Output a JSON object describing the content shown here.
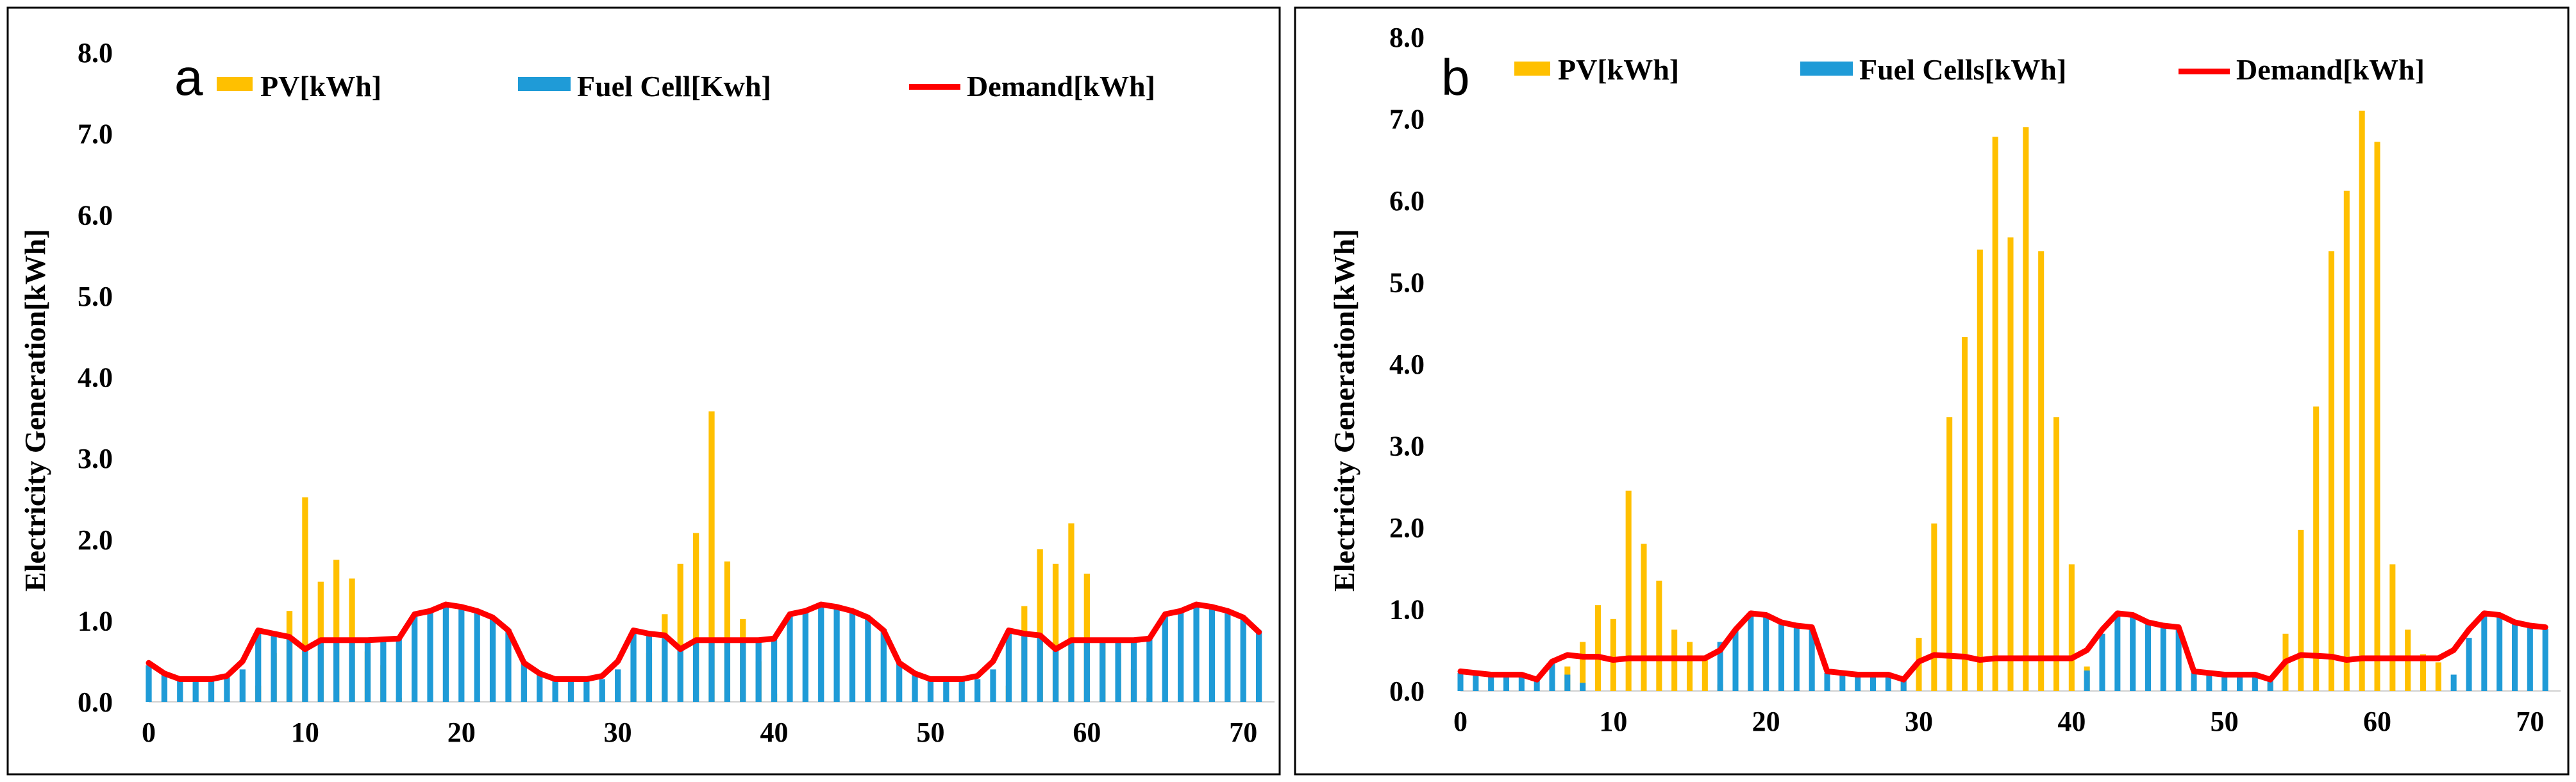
{
  "chart_data": [
    {
      "type": "bar",
      "panel_label": "a",
      "ylabel": "Electricity Generation[kWh]",
      "xlabel": "",
      "ylim": [
        0,
        8
      ],
      "xlim": [
        0,
        72
      ],
      "y_ticks": [
        "0.0",
        "1.0",
        "2.0",
        "3.0",
        "4.0",
        "5.0",
        "6.0",
        "7.0",
        "8.0"
      ],
      "x_ticks": [
        "0",
        "10",
        "20",
        "30",
        "40",
        "50",
        "60",
        "70"
      ],
      "legend": [
        "PV[kWh]",
        "Fuel Cell[Kwh]",
        "Demand[kWh]"
      ],
      "x": [
        0,
        1,
        2,
        3,
        4,
        5,
        6,
        7,
        8,
        9,
        10,
        11,
        12,
        13,
        14,
        15,
        16,
        17,
        18,
        19,
        20,
        21,
        22,
        23,
        24,
        25,
        26,
        27,
        28,
        29,
        30,
        31,
        32,
        33,
        34,
        35,
        36,
        37,
        38,
        39,
        40,
        41,
        42,
        43,
        44,
        45,
        46,
        47,
        48,
        49,
        50,
        51,
        52,
        53,
        54,
        55,
        56,
        57,
        58,
        59,
        60,
        61,
        62,
        63,
        64,
        65,
        66,
        67,
        68,
        69,
        70,
        71
      ],
      "series": [
        {
          "name": "PV[kWh]",
          "kind": "bar",
          "color": "#FFC000",
          "values": [
            0,
            0,
            0,
            0,
            0,
            0,
            0,
            0.2,
            0.6,
            1.12,
            2.52,
            1.48,
            1.75,
            1.52,
            0.62,
            0.45,
            0.05,
            0,
            0,
            0,
            0,
            0,
            0,
            0,
            0,
            0,
            0,
            0,
            0,
            0,
            0,
            0.15,
            0.6,
            1.08,
            1.7,
            2.08,
            3.58,
            1.73,
            1.02,
            0.5,
            0.1,
            0,
            0,
            0,
            0,
            0,
            0,
            0,
            0,
            0,
            0,
            0,
            0,
            0,
            0,
            0.2,
            1.18,
            1.88,
            1.7,
            2.2,
            1.58,
            0.75,
            0.6,
            0.4,
            0.05,
            0,
            0,
            0,
            0,
            0,
            0,
            0
          ]
        },
        {
          "name": "Fuel Cell[Kwh]",
          "kind": "bar",
          "color": "#1F9BD7",
          "values": [
            0.45,
            0.35,
            0.28,
            0.28,
            0.28,
            0.3,
            0.4,
            0.88,
            0.84,
            0.78,
            0.65,
            0.78,
            0.76,
            0.76,
            0.76,
            0.76,
            0.78,
            1.08,
            1.12,
            1.2,
            1.17,
            1.12,
            1.04,
            0.9,
            0.5,
            0.35,
            0.28,
            0.28,
            0.28,
            0.28,
            0.4,
            0.88,
            0.84,
            0.82,
            0.65,
            0.76,
            0.76,
            0.76,
            0.76,
            0.76,
            0.78,
            1.08,
            1.1,
            1.2,
            1.17,
            1.12,
            1.04,
            0.9,
            0.5,
            0.35,
            0.28,
            0.28,
            0.28,
            0.28,
            0.4,
            0.88,
            0.84,
            0.82,
            0.65,
            0.76,
            0.76,
            0.76,
            0.76,
            0.76,
            0.78,
            1.08,
            1.12,
            1.2,
            1.17,
            1.12,
            1.04,
            0.88
          ]
        },
        {
          "name": "Demand[kWh]",
          "kind": "line",
          "color": "#FF0000",
          "values": [
            0.48,
            0.35,
            0.28,
            0.28,
            0.28,
            0.32,
            0.5,
            0.88,
            0.84,
            0.8,
            0.65,
            0.76,
            0.76,
            0.76,
            0.76,
            0.77,
            0.78,
            1.08,
            1.12,
            1.2,
            1.17,
            1.12,
            1.04,
            0.88,
            0.48,
            0.35,
            0.28,
            0.28,
            0.28,
            0.32,
            0.5,
            0.88,
            0.84,
            0.82,
            0.65,
            0.76,
            0.76,
            0.76,
            0.76,
            0.76,
            0.78,
            1.08,
            1.12,
            1.2,
            1.17,
            1.12,
            1.04,
            0.88,
            0.48,
            0.35,
            0.28,
            0.28,
            0.28,
            0.32,
            0.5,
            0.88,
            0.84,
            0.82,
            0.65,
            0.76,
            0.76,
            0.76,
            0.76,
            0.76,
            0.78,
            1.08,
            1.12,
            1.2,
            1.17,
            1.12,
            1.04,
            0.86
          ]
        }
      ]
    },
    {
      "type": "bar",
      "panel_label": "b",
      "ylabel": "Electricity Generation[kWh]",
      "xlabel": "",
      "ylim": [
        0,
        8
      ],
      "xlim": [
        0,
        72
      ],
      "y_ticks": [
        "0.0",
        "1.0",
        "2.0",
        "3.0",
        "4.0",
        "5.0",
        "6.0",
        "7.0",
        "8.0"
      ],
      "x_ticks": [
        "0",
        "10",
        "20",
        "30",
        "40",
        "50",
        "60",
        "70"
      ],
      "legend": [
        "PV[kWh]",
        "Fuel Cells[kWh]",
        "Demand[kWh]"
      ],
      "x": [
        0,
        1,
        2,
        3,
        4,
        5,
        6,
        7,
        8,
        9,
        10,
        11,
        12,
        13,
        14,
        15,
        16,
        17,
        18,
        19,
        20,
        21,
        22,
        23,
        24,
        25,
        26,
        27,
        28,
        29,
        30,
        31,
        32,
        33,
        34,
        35,
        36,
        37,
        38,
        39,
        40,
        41,
        42,
        43,
        44,
        45,
        46,
        47,
        48,
        49,
        50,
        51,
        52,
        53,
        54,
        55,
        56,
        57,
        58,
        59,
        60,
        61,
        62,
        63,
        64,
        65,
        66,
        67,
        68,
        69,
        70,
        71
      ],
      "series": [
        {
          "name": "PV[kWh]",
          "kind": "bar",
          "color": "#FFC000",
          "values": [
            0,
            0,
            0,
            0,
            0,
            0,
            0.1,
            0.3,
            0.6,
            1.05,
            0.88,
            2.45,
            1.8,
            1.35,
            0.75,
            0.6,
            0.4,
            0.08,
            0,
            0,
            0,
            0,
            0,
            0,
            0,
            0,
            0,
            0,
            0,
            0.12,
            0.65,
            2.05,
            3.35,
            4.33,
            5.4,
            6.78,
            5.55,
            6.9,
            5.38,
            3.35,
            1.55,
            0.3,
            0,
            0,
            0,
            0,
            0,
            0,
            0,
            0,
            0,
            0,
            0,
            0.1,
            0.7,
            1.97,
            3.48,
            5.38,
            6.12,
            7.1,
            6.72,
            1.55,
            0.75,
            0.45,
            0.35,
            0,
            0,
            0,
            0,
            0,
            0,
            0
          ]
        },
        {
          "name": "Fuel Cells[kWh]",
          "kind": "bar",
          "color": "#1F9BD7",
          "values": [
            0.22,
            0.2,
            0.18,
            0.18,
            0.18,
            0.14,
            0.35,
            0.2,
            0.1,
            0,
            0,
            0,
            0,
            0,
            0,
            0,
            0,
            0.6,
            0.75,
            0.95,
            0.92,
            0.82,
            0.78,
            0.76,
            0.22,
            0.2,
            0.18,
            0.18,
            0.18,
            0.14,
            0,
            0,
            0,
            0,
            0,
            0,
            0,
            0,
            0,
            0,
            0,
            0.25,
            0.7,
            0.95,
            0.93,
            0.84,
            0.8,
            0.76,
            0.22,
            0.2,
            0.18,
            0.18,
            0.18,
            0.14,
            0,
            0,
            0,
            0,
            0,
            0,
            0,
            0,
            0,
            0,
            0,
            0.2,
            0.65,
            0.95,
            0.92,
            0.82,
            0.78,
            0.76
          ]
        },
        {
          "name": "Demand[kWh]",
          "kind": "line",
          "color": "#FF0000",
          "values": [
            0.24,
            0.22,
            0.2,
            0.2,
            0.2,
            0.14,
            0.36,
            0.44,
            0.42,
            0.42,
            0.38,
            0.4,
            0.4,
            0.4,
            0.4,
            0.4,
            0.4,
            0.5,
            0.75,
            0.95,
            0.93,
            0.84,
            0.8,
            0.78,
            0.24,
            0.22,
            0.2,
            0.2,
            0.2,
            0.14,
            0.36,
            0.44,
            0.43,
            0.42,
            0.38,
            0.4,
            0.4,
            0.4,
            0.4,
            0.4,
            0.4,
            0.5,
            0.75,
            0.95,
            0.93,
            0.84,
            0.8,
            0.78,
            0.24,
            0.22,
            0.2,
            0.2,
            0.2,
            0.14,
            0.36,
            0.44,
            0.43,
            0.42,
            0.38,
            0.4,
            0.4,
            0.4,
            0.4,
            0.4,
            0.4,
            0.5,
            0.75,
            0.95,
            0.93,
            0.84,
            0.8,
            0.78
          ]
        }
      ]
    }
  ]
}
